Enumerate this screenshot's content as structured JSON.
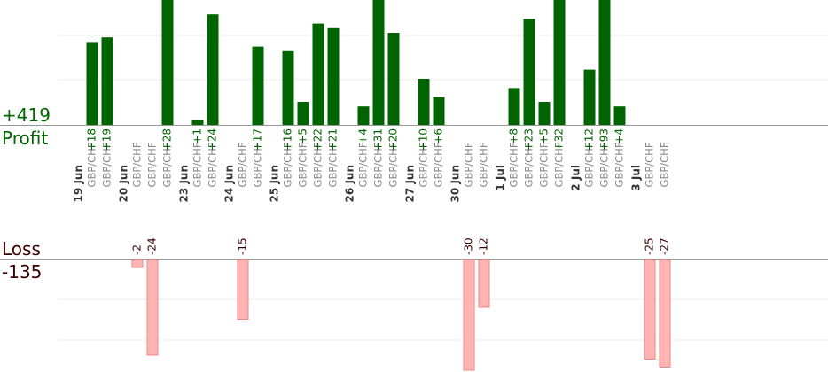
{
  "summary": {
    "profit_total": "+419",
    "profit_label": "Profit",
    "loss_label": "Loss",
    "loss_total": "-135"
  },
  "colors": {
    "profit_bar": "#006400",
    "profit_text": "#006400",
    "loss_bar": "#ffb3b3",
    "loss_bar_edge": "#e88a8a",
    "loss_text": "#3a0000",
    "pair_text": "#888888",
    "date_text": "#333333"
  },
  "chart_data": {
    "type": "bar",
    "title": "",
    "pair": "GBP/CHF",
    "groups": [
      {
        "date": "19 Jun",
        "trades": [
          18,
          19
        ]
      },
      {
        "date": "20 Jun",
        "trades": [
          -2,
          -24,
          28
        ]
      },
      {
        "date": "23 Jun",
        "trades": [
          1,
          24
        ]
      },
      {
        "date": "24 Jun",
        "trades": [
          -15,
          17
        ]
      },
      {
        "date": "25 Jun",
        "trades": [
          16,
          5,
          22,
          21
        ]
      },
      {
        "date": "26 Jun",
        "trades": [
          4,
          31,
          20
        ]
      },
      {
        "date": "27 Jun",
        "trades": [
          10,
          6
        ]
      },
      {
        "date": "30 Jun",
        "trades": [
          -30,
          -12
        ]
      },
      {
        "date": "1 Jul",
        "trades": [
          8,
          23,
          5,
          32
        ]
      },
      {
        "date": "2 Jul",
        "trades": [
          12,
          93,
          4
        ]
      },
      {
        "date": "3 Jul",
        "trades": [
          -25,
          -27
        ]
      }
    ],
    "profit_axis_max": 30,
    "loss_axis_min": -25,
    "grid": true
  }
}
